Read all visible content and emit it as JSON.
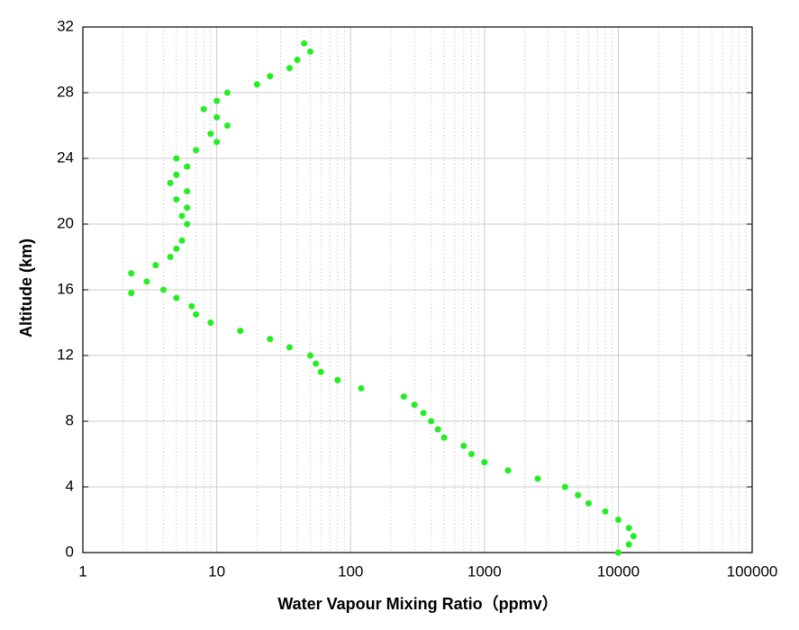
{
  "chart_data": {
    "type": "scatter",
    "xlabel": "Water Vapour Mixing Ratio（ppmv）",
    "ylabel": "Altitude (km)",
    "xscale": "log",
    "grid": true,
    "color": "#22ee22",
    "xlim": [
      1,
      100000
    ],
    "xticks": [
      1,
      10,
      100,
      1000,
      10000,
      100000
    ],
    "ylim": [
      0,
      32
    ],
    "yticks": [
      0,
      4,
      8,
      12,
      16,
      20,
      24,
      28,
      32
    ],
    "series": [
      {
        "name": "Water vapour",
        "color": "#22ee22",
        "x": [
          45,
          50,
          40,
          35,
          25,
          20,
          12,
          10,
          8,
          10,
          12,
          9,
          10,
          7,
          5,
          6,
          5,
          4.5,
          6,
          5,
          6,
          5.5,
          6,
          5.5,
          5,
          4.5,
          3.5,
          2.3,
          3,
          4,
          2.3,
          5,
          6.5,
          7,
          9,
          15,
          25,
          35,
          50,
          55,
          60,
          80,
          120,
          250,
          300,
          350,
          400,
          450,
          500,
          700,
          800,
          1000,
          1500,
          2500,
          4000,
          5000,
          6000,
          8000,
          10000,
          12000,
          13000,
          12000,
          10000
        ],
        "values": [
          31,
          30.5,
          30,
          29.5,
          29,
          28.5,
          28,
          27.5,
          27,
          26.5,
          26,
          25.5,
          25,
          24.5,
          24,
          23.5,
          23,
          22.5,
          22,
          21.5,
          21,
          20.5,
          20,
          19,
          18.5,
          18,
          17.5,
          17,
          16.5,
          16,
          15.8,
          15.5,
          15,
          14.5,
          14,
          13.5,
          13,
          12.5,
          12,
          11.5,
          11,
          10.5,
          10,
          9.5,
          9,
          8.5,
          8,
          7.5,
          7,
          6.5,
          6,
          5.5,
          5,
          4.5,
          4,
          3.5,
          3,
          2.5,
          2,
          1.5,
          1,
          0.5,
          0
        ]
      }
    ]
  }
}
